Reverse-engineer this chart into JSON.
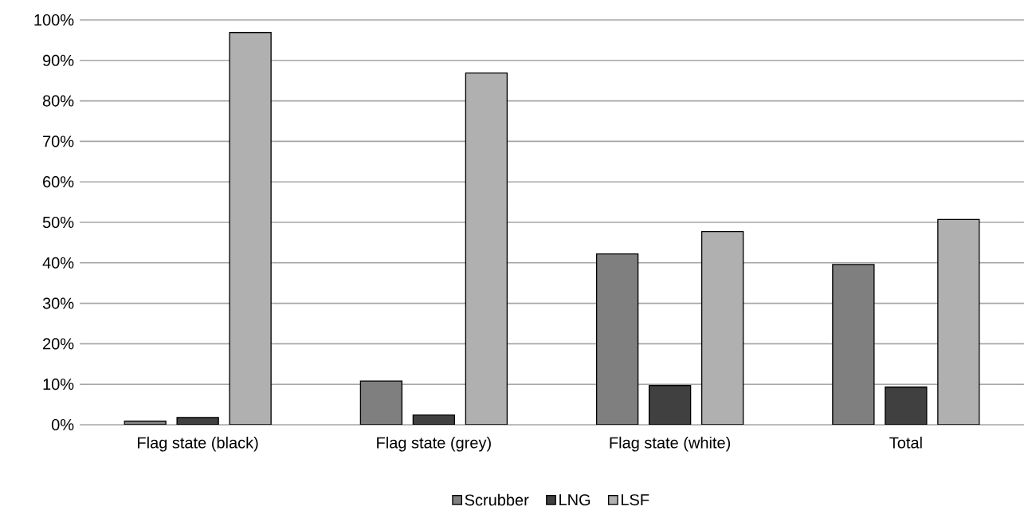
{
  "chart_data": {
    "type": "bar",
    "categories": [
      "Flag state (black)",
      "Flag state (grey)",
      "Flag state (white)",
      "Total"
    ],
    "series": [
      {
        "name": "Scrubber",
        "color": "#7f7f7f",
        "values": [
          0.9,
          10.8,
          42.2,
          39.6
        ]
      },
      {
        "name": "LNG",
        "color": "#404040",
        "values": [
          1.8,
          2.4,
          9.7,
          9.3
        ]
      },
      {
        "name": "LSF",
        "color": "#b0b0b0",
        "values": [
          96.9,
          86.9,
          47.7,
          50.7
        ]
      }
    ],
    "ylim": [
      0,
      100
    ],
    "yticks": [
      {
        "value": 0,
        "label": "0%"
      },
      {
        "value": 10,
        "label": "10%"
      },
      {
        "value": 20,
        "label": "20%"
      },
      {
        "value": 30,
        "label": "30%"
      },
      {
        "value": 40,
        "label": "40%"
      },
      {
        "value": 50,
        "label": "50%"
      },
      {
        "value": 60,
        "label": "60%"
      },
      {
        "value": 70,
        "label": "70%"
      },
      {
        "value": 80,
        "label": "80%"
      },
      {
        "value": 90,
        "label": "90%"
      },
      {
        "value": 100,
        "label": "100%"
      }
    ],
    "grid": "y",
    "legend": "bottom"
  }
}
